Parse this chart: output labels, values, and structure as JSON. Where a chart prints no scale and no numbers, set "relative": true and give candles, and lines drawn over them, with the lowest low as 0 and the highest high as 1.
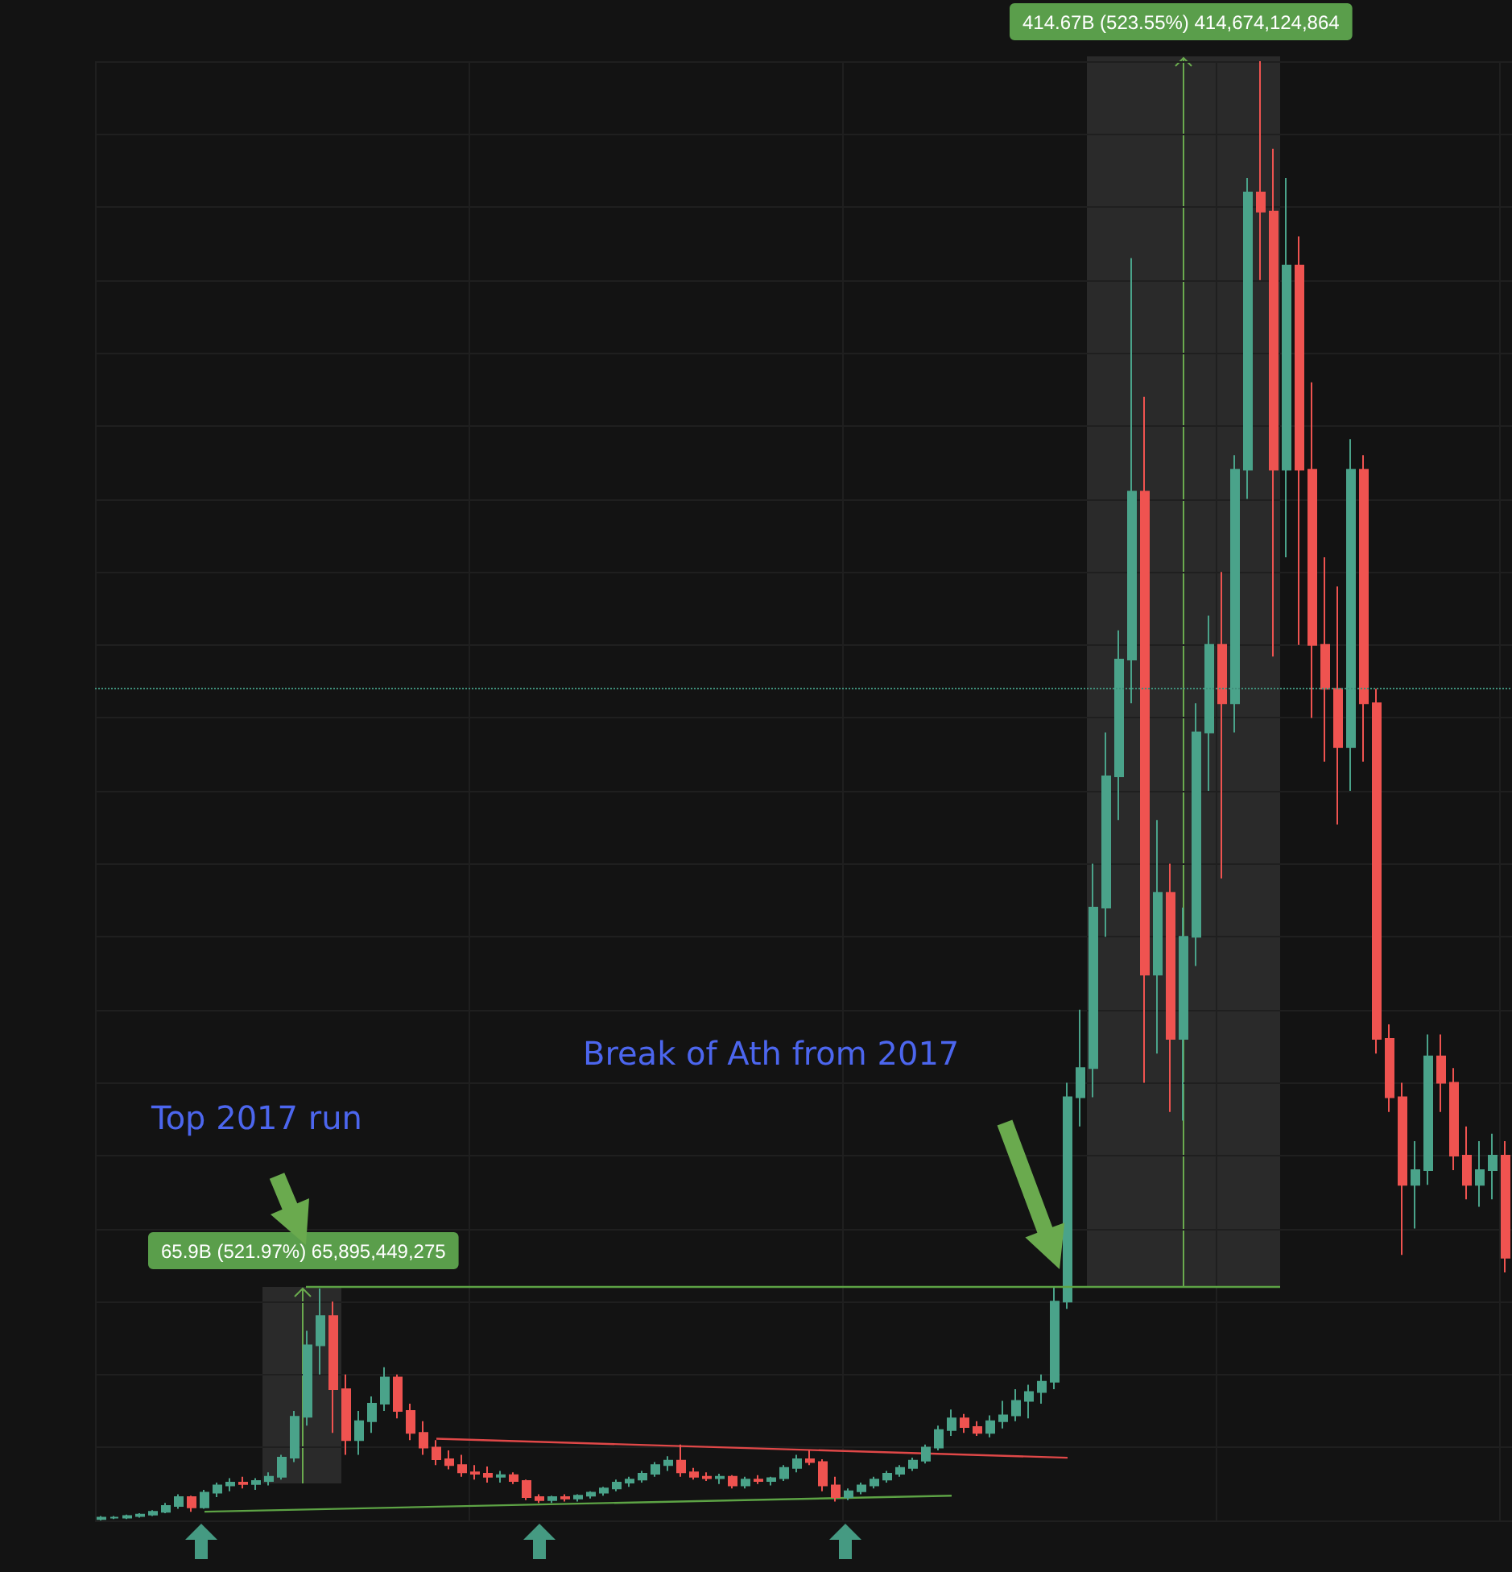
{
  "chart_data": {
    "type": "candlestick",
    "relative": true,
    "grid": true,
    "tick_labels": false,
    "categories": [
      null,
      null,
      null,
      null,
      null,
      null,
      null,
      null,
      null,
      null,
      null,
      null,
      null,
      null,
      null,
      null,
      null,
      null,
      null,
      null,
      null,
      null,
      null,
      null,
      null,
      null,
      null,
      null,
      null,
      null,
      null,
      null,
      null,
      null,
      null,
      null,
      null,
      null,
      null,
      null,
      null,
      null,
      null,
      null,
      null,
      null,
      null,
      null,
      null,
      null,
      null,
      null,
      null,
      null,
      null,
      null,
      null,
      null,
      null,
      null,
      null,
      null,
      null,
      null,
      null,
      null,
      null,
      null,
      null,
      null,
      null,
      null,
      null,
      null,
      null,
      null,
      null,
      null,
      null,
      null,
      null,
      null,
      null,
      null,
      null,
      null,
      null,
      null,
      null,
      null,
      null,
      null,
      null,
      null,
      null,
      null,
      null,
      null,
      null,
      null,
      null,
      null,
      null,
      null,
      null,
      null,
      null,
      null,
      null,
      null
    ],
    "ohlc": [
      [
        0.001,
        0.003,
        0,
        0.002
      ],
      [
        0.002,
        0.003,
        0.001,
        0.002
      ],
      [
        0.002,
        0.004,
        0.001,
        0.003
      ],
      [
        0.003,
        0.005,
        0.002,
        0.004
      ],
      [
        0.004,
        0.007,
        0.003,
        0.006
      ],
      [
        0.006,
        0.012,
        0.005,
        0.01
      ],
      [
        0.01,
        0.018,
        0.008,
        0.016
      ],
      [
        0.016,
        0.017,
        0.006,
        0.009
      ],
      [
        0.009,
        0.021,
        0.008,
        0.019
      ],
      [
        0.019,
        0.026,
        0.016,
        0.024
      ],
      [
        0.024,
        0.029,
        0.02,
        0.026
      ],
      [
        0.026,
        0.03,
        0.022,
        0.025
      ],
      [
        0.025,
        0.029,
        0.021,
        0.027
      ],
      [
        0.027,
        0.033,
        0.024,
        0.03
      ],
      [
        0.03,
        0.045,
        0.028,
        0.043
      ],
      [
        0.043,
        0.075,
        0.04,
        0.071
      ],
      [
        0.071,
        0.13,
        0.065,
        0.12
      ],
      [
        0.12,
        0.159,
        0.1,
        0.14
      ],
      [
        0.14,
        0.15,
        0.06,
        0.09
      ],
      [
        0.09,
        0.1,
        0.045,
        0.055
      ],
      [
        0.055,
        0.075,
        0.045,
        0.068
      ],
      [
        0.068,
        0.085,
        0.06,
        0.08
      ],
      [
        0.08,
        0.105,
        0.075,
        0.098
      ],
      [
        0.098,
        0.1,
        0.07,
        0.075
      ],
      [
        0.075,
        0.08,
        0.055,
        0.06
      ],
      [
        0.06,
        0.068,
        0.045,
        0.05
      ],
      [
        0.05,
        0.055,
        0.038,
        0.042
      ],
      [
        0.042,
        0.048,
        0.035,
        0.038
      ],
      [
        0.038,
        0.045,
        0.03,
        0.033
      ],
      [
        0.033,
        0.038,
        0.028,
        0.032
      ],
      [
        0.032,
        0.037,
        0.026,
        0.03
      ],
      [
        0.03,
        0.034,
        0.026,
        0.031
      ],
      [
        0.031,
        0.033,
        0.025,
        0.027
      ],
      [
        0.027,
        0.028,
        0.014,
        0.016
      ],
      [
        0.016,
        0.018,
        0.012,
        0.014
      ],
      [
        0.014,
        0.017,
        0.012,
        0.016
      ],
      [
        0.016,
        0.018,
        0.013,
        0.015
      ],
      [
        0.015,
        0.018,
        0.013,
        0.017
      ],
      [
        0.017,
        0.02,
        0.015,
        0.019
      ],
      [
        0.019,
        0.023,
        0.017,
        0.022
      ],
      [
        0.022,
        0.028,
        0.02,
        0.026
      ],
      [
        0.026,
        0.03,
        0.023,
        0.028
      ],
      [
        0.028,
        0.034,
        0.026,
        0.032
      ],
      [
        0.032,
        0.04,
        0.03,
        0.038
      ],
      [
        0.038,
        0.044,
        0.034,
        0.041
      ],
      [
        0.041,
        0.052,
        0.03,
        0.033
      ],
      [
        0.033,
        0.036,
        0.028,
        0.03
      ],
      [
        0.03,
        0.033,
        0.027,
        0.029
      ],
      [
        0.029,
        0.032,
        0.025,
        0.03
      ],
      [
        0.03,
        0.031,
        0.022,
        0.024
      ],
      [
        0.024,
        0.03,
        0.022,
        0.028
      ],
      [
        0.028,
        0.031,
        0.025,
        0.027
      ],
      [
        0.027,
        0.03,
        0.024,
        0.029
      ],
      [
        0.029,
        0.038,
        0.027,
        0.036
      ],
      [
        0.036,
        0.045,
        0.033,
        0.042
      ],
      [
        0.042,
        0.048,
        0.038,
        0.04
      ],
      [
        0.04,
        0.042,
        0.02,
        0.024
      ],
      [
        0.024,
        0.03,
        0.013,
        0.016
      ],
      [
        0.016,
        0.022,
        0.014,
        0.02
      ],
      [
        0.02,
        0.026,
        0.018,
        0.024
      ],
      [
        0.024,
        0.03,
        0.022,
        0.028
      ],
      [
        0.028,
        0.034,
        0.026,
        0.032
      ],
      [
        0.032,
        0.038,
        0.03,
        0.036
      ],
      [
        0.036,
        0.043,
        0.034,
        0.041
      ],
      [
        0.041,
        0.052,
        0.039,
        0.05
      ],
      [
        0.05,
        0.065,
        0.048,
        0.062
      ],
      [
        0.062,
        0.076,
        0.058,
        0.07
      ],
      [
        0.07,
        0.073,
        0.06,
        0.064
      ],
      [
        0.064,
        0.068,
        0.058,
        0.06
      ],
      [
        0.06,
        0.072,
        0.057,
        0.068
      ],
      [
        0.068,
        0.082,
        0.063,
        0.072
      ],
      [
        0.072,
        0.09,
        0.068,
        0.082
      ],
      [
        0.082,
        0.093,
        0.07,
        0.088
      ],
      [
        0.088,
        0.1,
        0.08,
        0.095
      ],
      [
        0.095,
        0.16,
        0.09,
        0.15
      ],
      [
        0.15,
        0.3,
        0.145,
        0.29
      ],
      [
        0.29,
        0.35,
        0.27,
        0.31
      ],
      [
        0.31,
        0.45,
        0.29,
        0.42
      ],
      [
        0.42,
        0.54,
        0.4,
        0.51
      ],
      [
        0.51,
        0.61,
        0.48,
        0.59
      ],
      [
        0.59,
        0.865,
        0.56,
        0.705
      ],
      [
        0.705,
        0.77,
        0.3,
        0.374
      ],
      [
        0.374,
        0.48,
        0.32,
        0.43
      ],
      [
        0.43,
        0.45,
        0.28,
        0.33
      ],
      [
        0.33,
        0.42,
        0.274,
        0.4
      ],
      [
        0.4,
        0.56,
        0.38,
        0.54
      ],
      [
        0.54,
        0.62,
        0.5,
        0.6
      ],
      [
        0.6,
        0.65,
        0.44,
        0.56
      ],
      [
        0.56,
        0.73,
        0.54,
        0.72
      ],
      [
        0.72,
        0.92,
        0.7,
        0.91
      ],
      [
        0.91,
        1.0,
        0.85,
        0.897
      ],
      [
        0.897,
        0.94,
        0.592,
        0.72
      ],
      [
        0.72,
        0.92,
        0.66,
        0.86
      ],
      [
        0.86,
        0.88,
        0.6,
        0.72
      ],
      [
        0.72,
        0.78,
        0.55,
        0.6
      ],
      [
        0.6,
        0.66,
        0.52,
        0.57
      ],
      [
        0.57,
        0.64,
        0.477,
        0.53
      ],
      [
        0.53,
        0.741,
        0.5,
        0.72
      ],
      [
        0.72,
        0.73,
        0.52,
        0.56
      ],
      [
        0.56,
        0.57,
        0.32,
        0.33
      ],
      [
        0.33,
        0.34,
        0.28,
        0.29
      ],
      [
        0.29,
        0.3,
        0.182,
        0.23
      ],
      [
        0.23,
        0.26,
        0.2,
        0.24
      ],
      [
        0.24,
        0.333,
        0.23,
        0.318
      ],
      [
        0.318,
        0.333,
        0.28,
        0.3
      ],
      [
        0.3,
        0.31,
        0.24,
        0.25
      ],
      [
        0.25,
        0.27,
        0.22,
        0.23
      ],
      [
        0.23,
        0.26,
        0.215,
        0.24
      ],
      [
        0.24,
        0.265,
        0.22,
        0.25
      ],
      [
        0.25,
        0.26,
        0.17,
        0.18
      ]
    ],
    "colors": [
      "#4aa38a",
      "#4aa38a",
      "#4aa38a",
      "#4aa38a",
      "#4aa38a",
      "#4aa38a",
      "#4aa38a",
      "#ef5350",
      "#4aa38a",
      "#4aa38a",
      "#4aa38a",
      "#ef5350",
      "#4aa38a",
      "#4aa38a",
      "#4aa38a",
      "#4aa38a",
      "#4aa38a",
      "#4aa38a",
      "#ef5350",
      "#ef5350",
      "#4aa38a",
      "#4aa38a",
      "#4aa38a",
      "#ef5350",
      "#ef5350",
      "#ef5350",
      "#ef5350",
      "#ef5350",
      "#ef5350",
      "#ef5350",
      "#ef5350",
      "#4aa38a",
      "#ef5350",
      "#ef5350",
      "#ef5350",
      "#4aa38a",
      "#ef5350",
      "#4aa38a",
      "#4aa38a",
      "#4aa38a",
      "#4aa38a",
      "#4aa38a",
      "#4aa38a",
      "#4aa38a",
      "#4aa38a",
      "#ef5350",
      "#ef5350",
      "#ef5350",
      "#4aa38a",
      "#ef5350",
      "#4aa38a",
      "#ef5350",
      "#4aa38a",
      "#4aa38a",
      "#4aa38a",
      "#ef5350",
      "#ef5350",
      "#ef5350",
      "#4aa38a",
      "#4aa38a",
      "#4aa38a",
      "#4aa38a",
      "#4aa38a",
      "#4aa38a",
      "#4aa38a",
      "#4aa38a",
      "#4aa38a",
      "#ef5350",
      "#ef5350",
      "#4aa38a",
      "#4aa38a",
      "#4aa38a",
      "#4aa38a",
      "#4aa38a",
      "#4aa38a",
      "#4aa38a",
      "#4aa38a",
      "#4aa38a",
      "#4aa38a",
      "#4aa38a",
      "#4aa38a",
      "#ef5350",
      "#4aa38a",
      "#ef5350",
      "#4aa38a",
      "#4aa38a",
      "#4aa38a",
      "#ef5350",
      "#4aa38a",
      "#4aa38a",
      "#ef5350",
      "#ef5350",
      "#4aa38a",
      "#ef5350",
      "#ef5350",
      "#ef5350",
      "#ef5350",
      "#4aa38a",
      "#ef5350",
      "#ef5350",
      "#ef5350",
      "#ef5350",
      "#4aa38a",
      "#4aa38a",
      "#ef5350",
      "#ef5350",
      "#ef5350",
      "#4aa38a",
      "#4aa38a",
      "#ef5350"
    ],
    "series": [
      {
        "type": "line",
        "color": "#e04848",
        "values": [
          null,
          null,
          null,
          null,
          null,
          null,
          null,
          null,
          null,
          null,
          null,
          null,
          null,
          null,
          null,
          null,
          null,
          null,
          null,
          null,
          null,
          null,
          null,
          null,
          null,
          null,
          0.056,
          null,
          null,
          null,
          null,
          null,
          null,
          null,
          null,
          null,
          null,
          null,
          null,
          null,
          null,
          null,
          null,
          null,
          null,
          null,
          null,
          null,
          null,
          null,
          null,
          null,
          null,
          null,
          null,
          null,
          null,
          null,
          null,
          null,
          null,
          null,
          null,
          null,
          null,
          null,
          null,
          null,
          null,
          null,
          null,
          null,
          null,
          null,
          null,
          0.043,
          null,
          null,
          null,
          null,
          null,
          null,
          null,
          null,
          null,
          null,
          null,
          null,
          null,
          null,
          null,
          null,
          null,
          null,
          null,
          null,
          null,
          null,
          null,
          null,
          null,
          null,
          null,
          null,
          null,
          null,
          null,
          null,
          null,
          null
        ]
      },
      {
        "type": "line",
        "color": "#5da345",
        "values": [
          null,
          null,
          null,
          null,
          null,
          null,
          null,
          null,
          0.006,
          null,
          null,
          null,
          null,
          null,
          null,
          null,
          null,
          null,
          null,
          null,
          null,
          null,
          null,
          null,
          null,
          null,
          null,
          null,
          null,
          null,
          null,
          null,
          null,
          null,
          null,
          null,
          null,
          null,
          null,
          null,
          null,
          null,
          null,
          null,
          null,
          null,
          null,
          null,
          null,
          null,
          null,
          null,
          null,
          null,
          null,
          null,
          null,
          null,
          null,
          null,
          null,
          null,
          null,
          null,
          null,
          null,
          0.017,
          null,
          null,
          null,
          null,
          null,
          null,
          null,
          null,
          null,
          null,
          null,
          null,
          null,
          null,
          null,
          null,
          null,
          null,
          null,
          null,
          null,
          null,
          null,
          null,
          null,
          null,
          null,
          null,
          null,
          null,
          null,
          null,
          null,
          null,
          null,
          null,
          null,
          null,
          null,
          null,
          null,
          null,
          null
        ]
      }
    ],
    "ref_lines": [
      {
        "axis": "y",
        "value": 0.57,
        "color": "#3f8f7a",
        "line_style": "dotted"
      }
    ],
    "annotations": [
      "Top 2017 run",
      "Break of Ath from 2017",
      "65.9B (521.97%) 65,895,449,275",
      "414.67B (523.55%) 414,674,124,864"
    ]
  }
}
